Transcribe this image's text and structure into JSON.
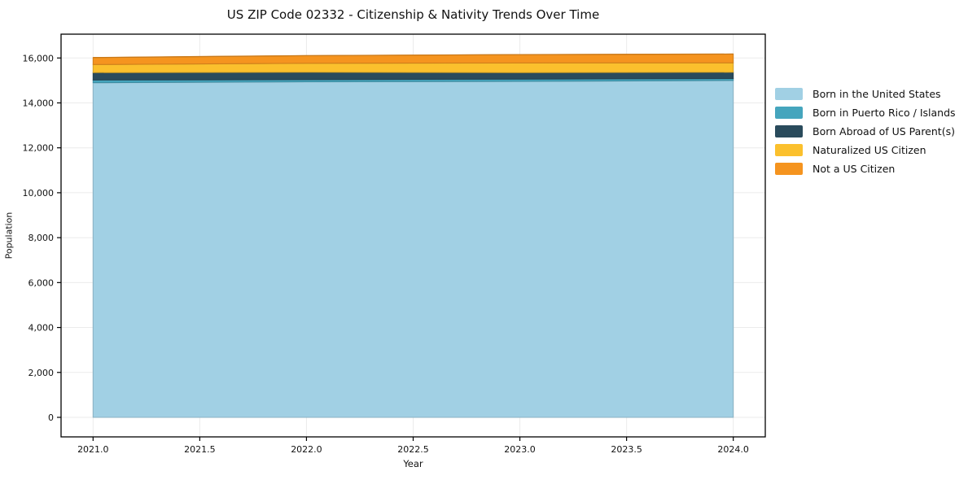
{
  "chart_data": {
    "type": "area",
    "stacked": true,
    "title": "US ZIP Code 02332 - Citizenship & Nativity Trends Over Time",
    "xlabel": "Year",
    "ylabel": "Population",
    "x": [
      2021,
      2022,
      2023,
      2024
    ],
    "series": [
      {
        "name": "Born in the United States",
        "color": "#a1d0e4",
        "values": [
          14900,
          14940,
          14960,
          15000
        ]
      },
      {
        "name": "Born in Puerto Rico / Islands",
        "color": "#45a5bd",
        "values": [
          120,
          95,
          100,
          85
        ]
      },
      {
        "name": "Born Abroad of US Parent(s)",
        "color": "#2a4b5c",
        "values": [
          330,
          330,
          290,
          280
        ]
      },
      {
        "name": "Naturalized US Citizen",
        "color": "#fbc02d",
        "values": [
          360,
          400,
          430,
          420
        ]
      },
      {
        "name": "Not a US Citizen",
        "color": "#f5941f",
        "values": [
          310,
          340,
          370,
          390
        ]
      }
    ],
    "xlim": [
      2020.85,
      2024.15
    ],
    "ylim": [
      -870,
      17060
    ],
    "x_ticks": [
      2021.0,
      2021.5,
      2022.0,
      2022.5,
      2023.0,
      2023.5,
      2024.0
    ],
    "x_tick_labels": [
      "2021.0",
      "2021.5",
      "2022.0",
      "2022.5",
      "2023.0",
      "2023.5",
      "2024.0"
    ],
    "y_ticks": [
      0,
      2000,
      4000,
      6000,
      8000,
      10000,
      12000,
      14000,
      16000
    ],
    "y_tick_labels": [
      "0",
      "2,000",
      "4,000",
      "6,000",
      "8,000",
      "10,000",
      "12,000",
      "14,000",
      "16,000"
    ],
    "grid": true,
    "grid_color": "#ebebeb",
    "spine_color": "#000000",
    "legend_position": "outside-right"
  }
}
